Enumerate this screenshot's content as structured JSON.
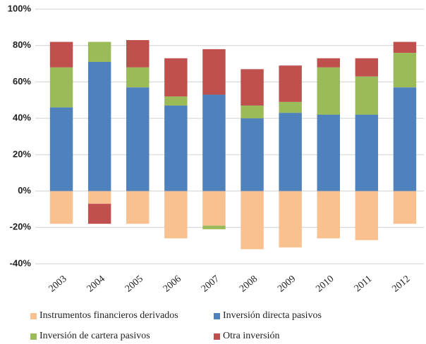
{
  "chart_data": {
    "type": "stacked_bar",
    "categories": [
      "2003",
      "2004",
      "2005",
      "2006",
      "2007",
      "2008",
      "2009",
      "2010",
      "2011",
      "2012"
    ],
    "series": [
      {
        "name": "Instrumentos financieros derivados",
        "color": "#f9c18f",
        "values": [
          -18,
          -7,
          -18,
          -26,
          -19,
          -32,
          -31,
          -26,
          -27,
          -18
        ]
      },
      {
        "name": "Inversión directa pasivos",
        "color": "#4f81bd",
        "values": [
          46,
          71,
          57,
          47,
          53,
          40,
          43,
          42,
          42,
          57
        ]
      },
      {
        "name": "Inversión de cartera pasivos",
        "color": "#9bbb59",
        "values": [
          22,
          11,
          11,
          5,
          -2,
          7,
          6,
          26,
          21,
          19
        ]
      },
      {
        "name": "Otra inversión",
        "color": "#c0504d",
        "values": [
          14,
          -11,
          15,
          21,
          25,
          20,
          20,
          5,
          10,
          6
        ]
      }
    ],
    "ylim": [
      -40,
      100
    ],
    "yticks": [
      {
        "value": -40,
        "label": "-40%"
      },
      {
        "value": -20,
        "label": "-20%"
      },
      {
        "value": 0,
        "label": "0%"
      },
      {
        "value": 20,
        "label": "20%"
      },
      {
        "value": 40,
        "label": "40%"
      },
      {
        "value": 60,
        "label": "60%"
      },
      {
        "value": 80,
        "label": "80%"
      },
      {
        "value": 100,
        "label": "100%"
      }
    ],
    "grid": true,
    "legend": "bottom"
  }
}
